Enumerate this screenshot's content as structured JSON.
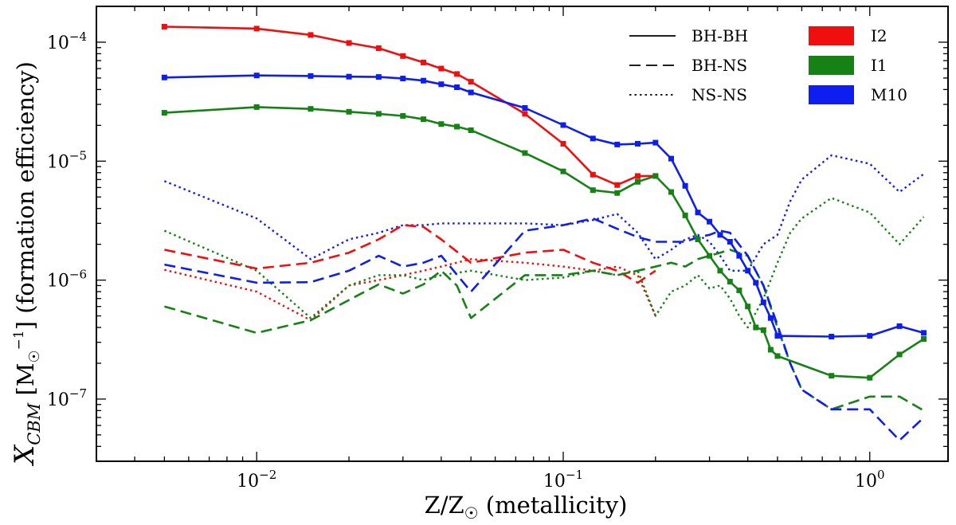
{
  "chart_data": {
    "type": "line",
    "title": "",
    "xlabel": "Z/Z☉ (metallicity)",
    "ylabel": {
      "main": "X",
      "sub": "CBM",
      "unit_open": " [M",
      "unit_sub": "☉",
      "unit_sup": "−1",
      "unit_close": "] (formation efficiency)"
    },
    "xscale": "log",
    "yscale": "log",
    "xlim": [
      0.003,
      1.8
    ],
    "ylim": [
      3e-08,
      0.0002
    ],
    "x_ticks": [
      {
        "value": 0.01,
        "base": "10",
        "exp": "−2"
      },
      {
        "value": 0.1,
        "base": "10",
        "exp": "−1"
      },
      {
        "value": 1,
        "base": "10",
        "exp": "0"
      }
    ],
    "y_ticks": [
      {
        "value": 1e-07,
        "base": "10",
        "exp": "−7"
      },
      {
        "value": 1e-06,
        "base": "10",
        "exp": "−6"
      },
      {
        "value": 1e-05,
        "base": "10",
        "exp": "−5"
      },
      {
        "value": 0.0001,
        "base": "10",
        "exp": "−4"
      }
    ],
    "legend_placement": "top-right",
    "legend": {
      "line_styles": [
        {
          "label": "BH-BH",
          "dash": "solid"
        },
        {
          "label": "BH-NS",
          "dash": "dashed"
        },
        {
          "label": "NS-NS",
          "dash": "dotted"
        }
      ],
      "models": [
        {
          "label": "I2",
          "color": "#f00f0f"
        },
        {
          "label": "I1",
          "color": "#168216"
        },
        {
          "label": "M10",
          "color": "#0f1ef0"
        }
      ]
    },
    "series": [
      {
        "name": "I2 BH-BH",
        "model": "I2",
        "kind": "BH-BH",
        "dash": "solid",
        "color": "#f00f0f",
        "markers": true,
        "x": [
          0.005,
          0.01,
          0.015,
          0.02,
          0.025,
          0.03,
          0.035,
          0.04,
          0.045,
          0.05,
          0.075,
          0.1,
          0.125,
          0.15,
          0.175,
          0.2
        ],
        "y": [
          0.000135,
          0.00013,
          0.000115,
          9.85e-05,
          8.9e-05,
          7.65e-05,
          6.75e-05,
          6e-05,
          5.4e-05,
          4.65e-05,
          2.5e-05,
          1.4e-05,
          7.7e-06,
          6.3e-06,
          7.5e-06,
          7.5e-06
        ]
      },
      {
        "name": "I1 BH-BH",
        "model": "I1",
        "kind": "BH-BH",
        "dash": "solid",
        "color": "#168216",
        "markers": true,
        "x": [
          0.005,
          0.01,
          0.015,
          0.02,
          0.025,
          0.03,
          0.035,
          0.04,
          0.045,
          0.05,
          0.075,
          0.1,
          0.125,
          0.15,
          0.175,
          0.2,
          0.225,
          0.25,
          0.275,
          0.3,
          0.325,
          0.35,
          0.375,
          0.4,
          0.425,
          0.45,
          0.475,
          0.5,
          0.75,
          1.0,
          1.25,
          1.5
        ],
        "y": [
          2.55e-05,
          2.85e-05,
          2.75e-05,
          2.6e-05,
          2.5e-05,
          2.4e-05,
          2.25e-05,
          2.05e-05,
          1.95e-05,
          1.82e-05,
          1.17e-05,
          8.2e-06,
          5.7e-06,
          5.4e-06,
          6.7e-06,
          7.5e-06,
          5.5e-06,
          3.5e-06,
          2.2e-06,
          1.6e-06,
          1.2e-06,
          9.7e-07,
          8.2e-07,
          6e-07,
          4e-07,
          3.8e-07,
          2.6e-07,
          2.3e-07,
          1.57e-07,
          1.51e-07,
          2.37e-07,
          3.2e-07
        ]
      },
      {
        "name": "M10 BH-BH",
        "model": "M10",
        "kind": "BH-BH",
        "dash": "solid",
        "color": "#0f1ef0",
        "markers": true,
        "x": [
          0.005,
          0.01,
          0.015,
          0.02,
          0.025,
          0.03,
          0.035,
          0.04,
          0.045,
          0.05,
          0.075,
          0.1,
          0.125,
          0.15,
          0.175,
          0.2,
          0.225,
          0.25,
          0.275,
          0.3,
          0.325,
          0.35,
          0.375,
          0.4,
          0.425,
          0.45,
          0.475,
          0.5,
          0.75,
          1.0,
          1.25,
          1.5
        ],
        "y": [
          5.05e-05,
          5.25e-05,
          5.2e-05,
          5.13e-05,
          5.1e-05,
          4.95e-05,
          4.75e-05,
          4.43e-05,
          4.18e-05,
          3.78e-05,
          2.8e-05,
          2.01e-05,
          1.55e-05,
          1.38e-05,
          1.4e-05,
          1.43e-05,
          1.05e-05,
          6.2e-06,
          3.7e-06,
          3.1e-06,
          2.4e-06,
          2.1e-06,
          1.6e-06,
          1.2e-06,
          9.5e-07,
          6.5e-07,
          4.8e-07,
          3.4e-07,
          3.35e-07,
          3.4e-07,
          4.1e-07,
          3.6e-07
        ]
      },
      {
        "name": "I2 BH-NS",
        "model": "I2",
        "kind": "BH-NS",
        "dash": "dashed",
        "color": "#f00f0f",
        "markers": false,
        "x": [
          0.005,
          0.01,
          0.015,
          0.02,
          0.025,
          0.03,
          0.035,
          0.04,
          0.05,
          0.075,
          0.1,
          0.125,
          0.15,
          0.175,
          0.2
        ],
        "y": [
          1.8e-06,
          1.25e-06,
          1.4e-06,
          1.7e-06,
          2.2e-06,
          2.9e-06,
          2.8e-06,
          2.2e-06,
          1.4e-06,
          1.7e-06,
          1.8e-06,
          1.4e-06,
          1.2e-06,
          9.5e-07,
          1.2e-06
        ]
      },
      {
        "name": "I1 BH-NS",
        "model": "I1",
        "kind": "BH-NS",
        "dash": "dashed",
        "color": "#168216",
        "markers": false,
        "x": [
          0.005,
          0.01,
          0.015,
          0.02,
          0.025,
          0.03,
          0.035,
          0.04,
          0.045,
          0.05,
          0.075,
          0.1,
          0.125,
          0.15,
          0.175,
          0.2,
          0.225,
          0.25,
          0.275,
          0.3,
          0.325,
          0.35,
          0.4,
          0.45,
          0.5,
          0.55,
          0.6,
          0.75,
          1.0,
          1.25,
          1.5
        ],
        "y": [
          6e-07,
          3.6e-07,
          4.6e-07,
          6.8e-07,
          9.2e-07,
          7.7e-07,
          9.2e-07,
          1.2e-06,
          9e-07,
          4.8e-07,
          1.1e-06,
          1.1e-06,
          1.2e-06,
          1.1e-06,
          1.2e-06,
          1.3e-06,
          1.4e-06,
          1.3e-06,
          1.5e-06,
          1.6e-06,
          1.7e-06,
          1.8e-06,
          1.6e-06,
          9e-07,
          4e-07,
          2e-07,
          1.2e-07,
          8.2e-08,
          1.05e-07,
          1.05e-07,
          8e-08
        ]
      },
      {
        "name": "M10 BH-NS",
        "model": "M10",
        "kind": "BH-NS",
        "dash": "dashed",
        "color": "#0f1ef0",
        "markers": false,
        "x": [
          0.005,
          0.01,
          0.015,
          0.02,
          0.025,
          0.03,
          0.035,
          0.04,
          0.05,
          0.075,
          0.1,
          0.125,
          0.15,
          0.175,
          0.2,
          0.225,
          0.25,
          0.275,
          0.3,
          0.325,
          0.35,
          0.4,
          0.45,
          0.5,
          0.55,
          0.6,
          0.75,
          1.0,
          1.25,
          1.5
        ],
        "y": [
          1.35e-06,
          9.5e-07,
          9.6e-07,
          1.2e-06,
          1.6e-06,
          1.3e-06,
          1.4e-06,
          1.6e-06,
          8e-07,
          2.6e-06,
          2.9e-06,
          3.3e-06,
          2.7e-06,
          2.3e-06,
          2.1e-06,
          2.1e-06,
          2.1e-06,
          2.3e-06,
          2.4e-06,
          2.6e-06,
          2.5e-06,
          1.6e-06,
          9e-07,
          4.2e-07,
          2e-07,
          1.2e-07,
          8.2e-08,
          8.2e-08,
          4.5e-08,
          7e-08
        ]
      },
      {
        "name": "I2 NS-NS",
        "model": "I2",
        "kind": "NS-NS",
        "dash": "dotted",
        "color": "#f00f0f",
        "markers": false,
        "x": [
          0.005,
          0.01,
          0.015,
          0.02,
          0.025,
          0.03,
          0.035,
          0.04,
          0.05,
          0.075,
          0.1,
          0.125,
          0.15,
          0.175,
          0.2
        ],
        "y": [
          1.22e-06,
          8e-07,
          4.6e-07,
          9e-07,
          1e-06,
          1.1e-06,
          1.2e-06,
          1.3e-06,
          1.5e-06,
          1.4e-06,
          1.3e-06,
          1.2e-06,
          1.3e-06,
          1.1e-06,
          5e-07
        ]
      },
      {
        "name": "I1 NS-NS",
        "model": "I1",
        "kind": "NS-NS",
        "dash": "dotted",
        "color": "#168216",
        "markers": false,
        "x": [
          0.005,
          0.01,
          0.015,
          0.02,
          0.025,
          0.03,
          0.035,
          0.04,
          0.05,
          0.075,
          0.1,
          0.125,
          0.15,
          0.175,
          0.2,
          0.225,
          0.25,
          0.275,
          0.3,
          0.325,
          0.35,
          0.375,
          0.4,
          0.45,
          0.5,
          0.55,
          0.6,
          0.75,
          1.0,
          1.25,
          1.5
        ],
        "y": [
          2.6e-06,
          1.2e-06,
          4.8e-07,
          9e-07,
          1.1e-06,
          1.1e-06,
          1e-06,
          1.1e-06,
          1.2e-06,
          1e-06,
          1.05e-06,
          1.2e-06,
          1.1e-06,
          1.2e-06,
          5e-07,
          8e-07,
          9e-07,
          1.1e-06,
          8.5e-07,
          9e-07,
          7e-07,
          5e-07,
          4e-07,
          7e-07,
          1.4e-06,
          2.5e-06,
          3.3e-06,
          4.9e-06,
          3.7e-06,
          2e-06,
          3.4e-06
        ]
      },
      {
        "name": "M10 NS-NS",
        "model": "M10",
        "kind": "NS-NS",
        "dash": "dotted",
        "color": "#0f1ef0",
        "markers": false,
        "x": [
          0.005,
          0.01,
          0.015,
          0.02,
          0.025,
          0.03,
          0.035,
          0.04,
          0.05,
          0.075,
          0.1,
          0.125,
          0.15,
          0.175,
          0.2,
          0.225,
          0.25,
          0.275,
          0.3,
          0.325,
          0.35,
          0.4,
          0.45,
          0.5,
          0.55,
          0.6,
          0.75,
          1.0,
          1.25,
          1.5
        ],
        "y": [
          6.8e-06,
          3.3e-06,
          1.5e-06,
          2.2e-06,
          2.5e-06,
          2.9e-06,
          2.9e-06,
          3e-06,
          3e-06,
          3e-06,
          2.9e-06,
          3.2e-06,
          3.6e-06,
          2.5e-06,
          1.5e-06,
          1.8e-06,
          2.2e-06,
          2.4e-06,
          2.1e-06,
          1.6e-06,
          1.2e-06,
          1.2e-06,
          2e-06,
          2.4e-06,
          4.6e-06,
          7e-06,
          1.12e-05,
          9.5e-06,
          5.5e-06,
          7.8e-06
        ]
      }
    ]
  }
}
